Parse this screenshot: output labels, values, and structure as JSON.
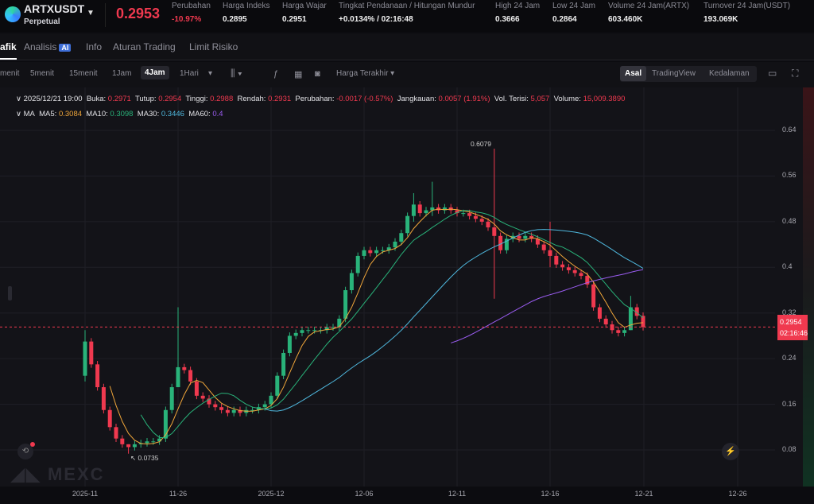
{
  "header": {
    "symbol": "ARTXUSDT",
    "type": "Perpetual",
    "last_price": "0.2953",
    "stats": [
      {
        "label": "Perubahan",
        "value": "-10.97%",
        "color": "#f0394f"
      },
      {
        "label": "Harga Indeks",
        "value": "0.2895"
      },
      {
        "label": "Harga Wajar",
        "value": "0.2951"
      },
      {
        "label": "Tingkat Pendanaan / Hitungan Mundur",
        "value": "+0.0134% / 02:16:48"
      },
      {
        "label": "High 24 Jam",
        "value": "0.3666"
      },
      {
        "label": "Low 24 Jam",
        "value": "0.2864"
      },
      {
        "label": "Volume 24 Jam(ARTX)",
        "value": "603.460K"
      },
      {
        "label": "Turnover 24 Jam(USDT)",
        "value": "193.069K"
      }
    ]
  },
  "tabs": [
    "afik",
    "Analisis",
    "Info",
    "Aturan Trading",
    "Limit Risiko"
  ],
  "ai_badge": "AI",
  "toolbar": {
    "intervals": [
      "menit",
      "5menit",
      "15menit",
      "1Jam",
      "4Jam",
      "1Hari"
    ],
    "active": "4Jam",
    "price_type": "Harga Terakhir",
    "views": [
      "Asal",
      "TradingView",
      "Kedalaman"
    ]
  },
  "ohlc": {
    "datetime": "2025/12/21 19:00",
    "open_label": "Buka:",
    "open": "0.2971",
    "close_label": "Tutup:",
    "close": "0.2954",
    "high_label": "Tinggi:",
    "high": "0.2988",
    "low_label": "Rendah:",
    "low": "0.2931",
    "change_label": "Perubahan:",
    "change": "-0.0017 (-0.57%)",
    "range_label": "Jangkauan:",
    "range": "0.0057 (1.91%)",
    "oi_label": "Vol. Terisi:",
    "oi": "5,057",
    "vol_label": "Volume:",
    "vol": "15,009.3890"
  },
  "ma": {
    "label": "MA",
    "ma5_label": "MA5:",
    "ma5": "0.3084",
    "ma10_label": "MA10:",
    "ma10": "0.3098",
    "ma30_label": "MA30:",
    "ma30": "0.3446",
    "ma60_label": "MA60:",
    "ma60": "0.4"
  },
  "price_tag": {
    "price": "0.2954",
    "countdown": "02:16:46"
  },
  "watermark": "MEXC",
  "chart_data": {
    "type": "candlestick",
    "ylim": [
      0.04,
      0.68
    ],
    "yticks": [
      "0.64",
      "0.56",
      "0.48",
      "0.4",
      "0.32",
      "0.24",
      "0.16",
      "0.08"
    ],
    "xticks": [
      "2025-11",
      "11-26",
      "2025-12",
      "12-06",
      "12-11",
      "12-16",
      "12-21",
      "12-26"
    ],
    "annotations": {
      "max": "0.6079",
      "min": "0.0735"
    },
    "colors": {
      "up": "#29b37a",
      "down": "#f0394f",
      "ma5": "#f0a63a",
      "ma10": "#29b37a",
      "ma30": "#4fb8de",
      "ma60": "#9a5cf0"
    },
    "first_open": 0.21,
    "closes": [
      0.27,
      0.23,
      0.19,
      0.15,
      0.12,
      0.1,
      0.09,
      0.085,
      0.09,
      0.092,
      0.095,
      0.095,
      0.1,
      0.15,
      0.19,
      0.225,
      0.22,
      0.2,
      0.175,
      0.17,
      0.16,
      0.155,
      0.15,
      0.145,
      0.15,
      0.145,
      0.15,
      0.15,
      0.155,
      0.16,
      0.175,
      0.21,
      0.25,
      0.28,
      0.285,
      0.29,
      0.29,
      0.29,
      0.29,
      0.295,
      0.295,
      0.31,
      0.36,
      0.39,
      0.42,
      0.43,
      0.425,
      0.43,
      0.43,
      0.435,
      0.445,
      0.46,
      0.49,
      0.51,
      0.495,
      0.5,
      0.505,
      0.5,
      0.505,
      0.5,
      0.495,
      0.495,
      0.49,
      0.485,
      0.48,
      0.47,
      0.455,
      0.43,
      0.45,
      0.455,
      0.45,
      0.455,
      0.45,
      0.44,
      0.43,
      0.42,
      0.405,
      0.4,
      0.395,
      0.39,
      0.385,
      0.37,
      0.33,
      0.31,
      0.3,
      0.29,
      0.285,
      0.29,
      0.33,
      0.315,
      0.2954
    ],
    "spikes": {
      "0": [
        0.29,
        0.2
      ],
      "7": [
        0.09,
        0.0735
      ],
      "15": [
        0.33,
        0.21
      ],
      "53": [
        0.53,
        0.48
      ],
      "56": [
        0.55,
        0.49
      ],
      "66": [
        0.6079,
        0.345
      ],
      "75": [
        0.48,
        0.4
      ],
      "88": [
        0.35,
        0.29
      ]
    }
  }
}
